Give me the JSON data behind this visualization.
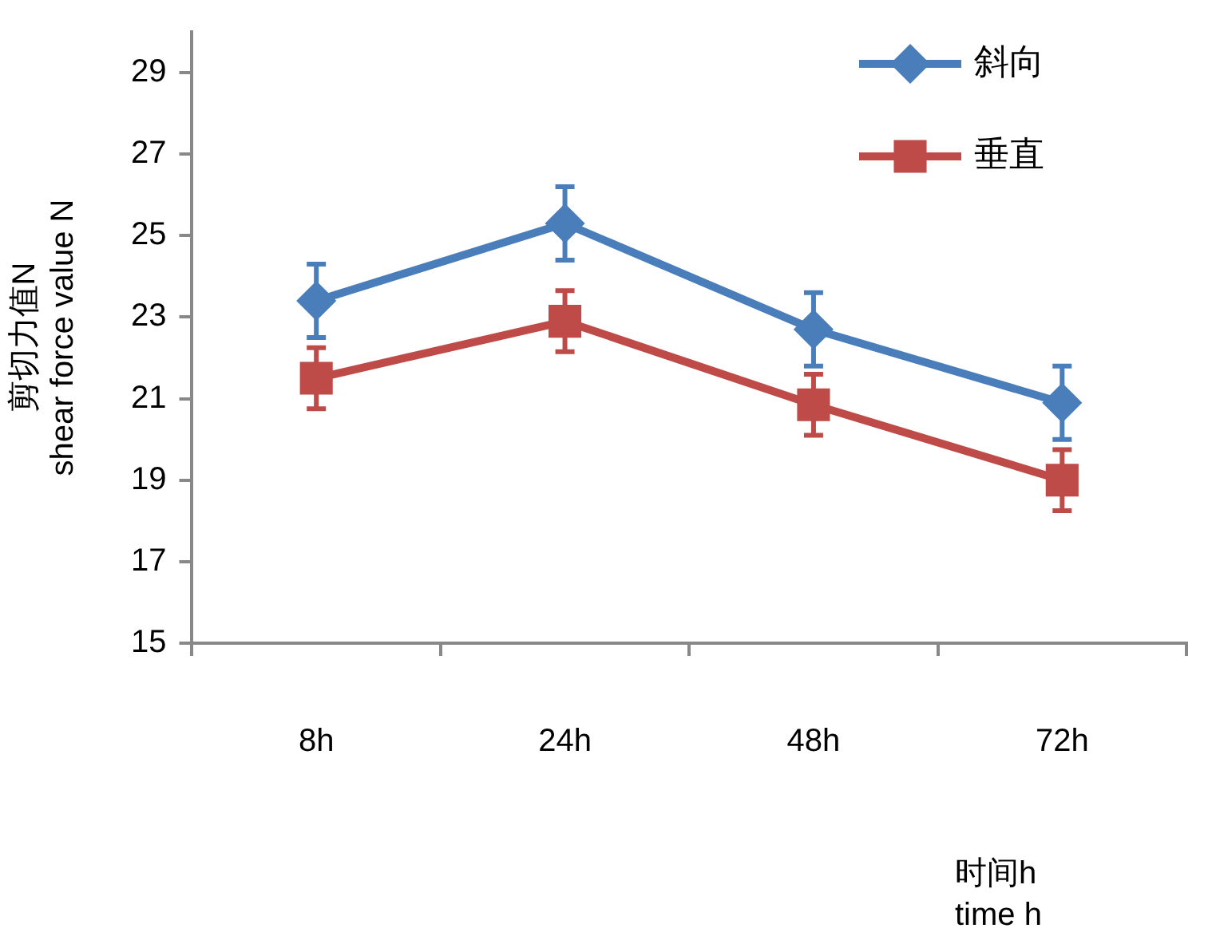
{
  "chart_data": {
    "type": "line",
    "xlabel": "时间h\ntime h",
    "ylabel": "剪切力值N\nshear force value N",
    "categories": [
      "8h",
      "24h",
      "48h",
      "72h"
    ],
    "series": [
      {
        "name": "斜向",
        "color": "#4a7ebb",
        "marker": "diamond",
        "values": [
          23.4,
          25.3,
          22.7,
          20.9
        ],
        "errors": [
          0.9,
          0.9,
          0.9,
          0.9
        ]
      },
      {
        "name": "垂直",
        "color": "#be4b48",
        "marker": "square",
        "values": [
          21.5,
          22.9,
          20.85,
          19.0
        ],
        "errors": [
          0.75,
          0.75,
          0.75,
          0.75
        ]
      }
    ],
    "ylim": [
      15,
      30
    ],
    "yticks": [
      15,
      17,
      19,
      21,
      23,
      25,
      27,
      29
    ],
    "grid": false,
    "legend": "top right"
  }
}
